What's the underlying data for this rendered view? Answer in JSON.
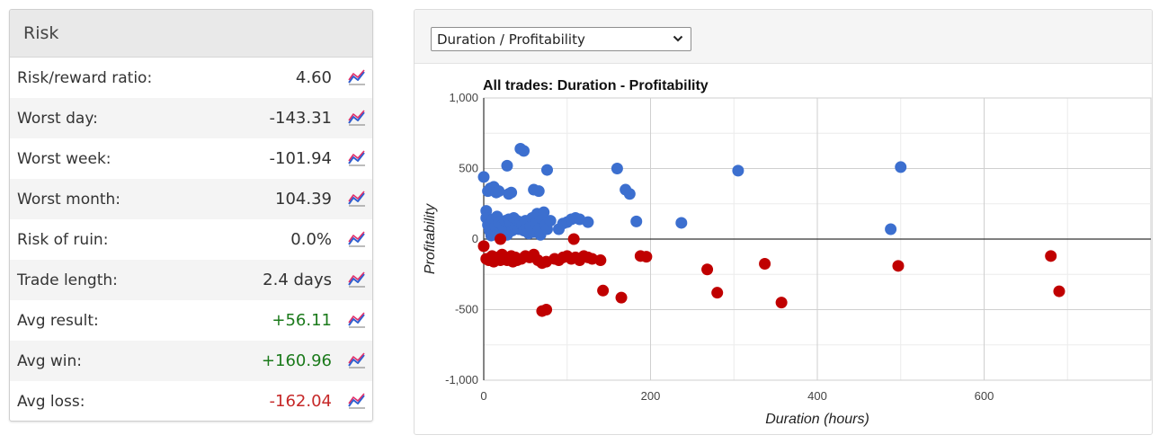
{
  "risk": {
    "title": "Risk",
    "rows": [
      {
        "label": "Risk/reward ratio:",
        "value": "4.60",
        "tone": "neutral"
      },
      {
        "label": "Worst day:",
        "value": "-143.31",
        "tone": "neutral"
      },
      {
        "label": "Worst week:",
        "value": "-101.94",
        "tone": "neutral"
      },
      {
        "label": "Worst month:",
        "value": "104.39",
        "tone": "neutral"
      },
      {
        "label": "Risk of ruin:",
        "value": "0.0%",
        "tone": "neutral"
      },
      {
        "label": "Trade length:",
        "value": "2.4 days",
        "tone": "neutral"
      },
      {
        "label": "Avg result:",
        "value": "+56.11",
        "tone": "positive"
      },
      {
        "label": "Avg win:",
        "value": "+160.96",
        "tone": "positive"
      },
      {
        "label": "Avg loss:",
        "value": "-162.04",
        "tone": "negative"
      }
    ],
    "icon": "line-chart-icon"
  },
  "chart_selector": {
    "selected": "Duration / Profitability"
  },
  "colors": {
    "positive_text": "#1b7a1b",
    "negative_text": "#c62828",
    "win_point": "#3c6fcf",
    "loss_point": "#c00000"
  },
  "chart_data": {
    "type": "scatter",
    "title": "All trades: Duration - Profitability",
    "xlabel": "Duration (hours)",
    "ylabel": "Profitability",
    "xlim": [
      0,
      800
    ],
    "ylim": [
      -1000,
      1000
    ],
    "x_ticks": [
      0,
      200,
      400,
      600
    ],
    "x_tick_labels": [
      "0",
      "200",
      "400",
      "600"
    ],
    "y_ticks": [
      1000,
      500,
      0,
      -500,
      -1000
    ],
    "y_tick_labels": [
      "1,000",
      "500",
      "0",
      "-500",
      "-1,000"
    ],
    "grid": true,
    "legend": "none",
    "series": [
      {
        "color": "#3c6fcf",
        "points": [
          [
            0,
            440
          ],
          [
            3,
            200
          ],
          [
            5,
            340
          ],
          [
            8,
            360
          ],
          [
            12,
            370
          ],
          [
            15,
            330
          ],
          [
            18,
            340
          ],
          [
            28,
            520
          ],
          [
            30,
            320
          ],
          [
            33,
            330
          ],
          [
            44,
            640
          ],
          [
            48,
            625
          ],
          [
            76,
            490
          ],
          [
            60,
            350
          ],
          [
            66,
            340
          ],
          [
            3,
            150
          ],
          [
            5,
            100
          ],
          [
            7,
            60
          ],
          [
            9,
            25
          ],
          [
            10,
            120
          ],
          [
            11,
            140
          ],
          [
            14,
            90
          ],
          [
            16,
            160
          ],
          [
            18,
            120
          ],
          [
            20,
            50
          ],
          [
            22,
            100
          ],
          [
            24,
            80
          ],
          [
            26,
            130
          ],
          [
            28,
            30
          ],
          [
            30,
            140
          ],
          [
            32,
            110
          ],
          [
            34,
            60
          ],
          [
            36,
            150
          ],
          [
            38,
            80
          ],
          [
            40,
            130
          ],
          [
            42,
            70
          ],
          [
            44,
            120
          ],
          [
            46,
            100
          ],
          [
            48,
            60
          ],
          [
            50,
            130
          ],
          [
            52,
            70
          ],
          [
            54,
            40
          ],
          [
            56,
            90
          ],
          [
            58,
            150
          ],
          [
            60,
            50
          ],
          [
            62,
            110
          ],
          [
            64,
            180
          ],
          [
            66,
            70
          ],
          [
            68,
            30
          ],
          [
            70,
            140
          ],
          [
            72,
            190
          ],
          [
            74,
            100
          ],
          [
            76,
            70
          ],
          [
            80,
            130
          ],
          [
            90,
            70
          ],
          [
            95,
            110
          ],
          [
            100,
            120
          ],
          [
            105,
            140
          ],
          [
            110,
            150
          ],
          [
            115,
            140
          ],
          [
            125,
            120
          ],
          [
            160,
            500
          ],
          [
            170,
            350
          ],
          [
            175,
            320
          ],
          [
            183,
            125
          ],
          [
            237,
            115
          ],
          [
            305,
            485
          ],
          [
            488,
            70
          ],
          [
            500,
            510
          ]
        ]
      },
      {
        "color": "#c00000",
        "points": [
          [
            0,
            -50
          ],
          [
            3,
            -140
          ],
          [
            6,
            -150
          ],
          [
            10,
            -120
          ],
          [
            12,
            -160
          ],
          [
            15,
            -130
          ],
          [
            18,
            -140
          ],
          [
            20,
            -150
          ],
          [
            22,
            -110
          ],
          [
            25,
            -130
          ],
          [
            28,
            -150
          ],
          [
            30,
            -140
          ],
          [
            33,
            -120
          ],
          [
            35,
            -160
          ],
          [
            38,
            -130
          ],
          [
            40,
            -150
          ],
          [
            45,
            -140
          ],
          [
            50,
            -120
          ],
          [
            55,
            -130
          ],
          [
            60,
            -110
          ],
          [
            65,
            -150
          ],
          [
            70,
            -170
          ],
          [
            75,
            -160
          ],
          [
            85,
            -140
          ],
          [
            90,
            -150
          ],
          [
            95,
            -130
          ],
          [
            100,
            -120
          ],
          [
            105,
            -140
          ],
          [
            110,
            -130
          ],
          [
            115,
            -150
          ],
          [
            120,
            -120
          ],
          [
            125,
            -130
          ],
          [
            130,
            -140
          ],
          [
            140,
            -150
          ],
          [
            20,
            0
          ],
          [
            108,
            0
          ],
          [
            143,
            -365
          ],
          [
            165,
            -415
          ],
          [
            70,
            -510
          ],
          [
            75,
            -500
          ],
          [
            188,
            -120
          ],
          [
            195,
            -125
          ],
          [
            268,
            -215
          ],
          [
            280,
            -380
          ],
          [
            337,
            -175
          ],
          [
            357,
            -450
          ],
          [
            497,
            -190
          ],
          [
            680,
            -120
          ],
          [
            690,
            -370
          ]
        ]
      }
    ]
  }
}
